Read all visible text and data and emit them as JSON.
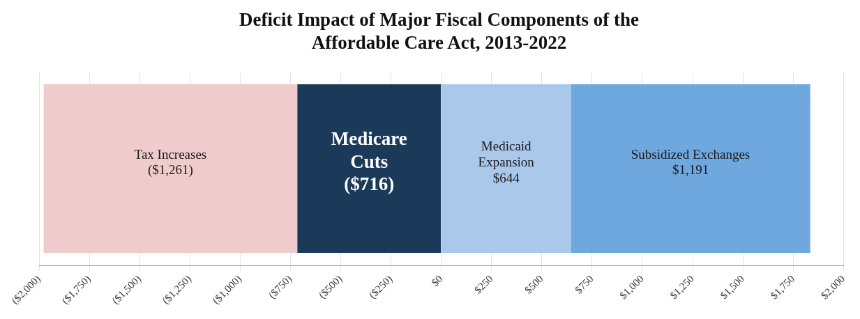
{
  "chart_data": {
    "type": "bar",
    "orientation": "horizontal",
    "title": "Deficit Impact of Major Fiscal Components of the Affordable Care Act, 2013-2022",
    "categories": [
      null
    ],
    "series": [
      {
        "name": "Tax Increases",
        "color": "#efcbcb",
        "values": [
          1261
        ],
        "base": [
          -1977
        ],
        "value_labels": [
          "($1,261)"
        ]
      },
      {
        "name": "Medicare Cuts",
        "color": "#1b3a5a",
        "values": [
          716
        ],
        "base": [
          -716
        ],
        "value_labels": [
          "($716)"
        ]
      },
      {
        "name": "Medicaid Expansion",
        "color": "#a9c8ea",
        "values": [
          644
        ],
        "base": [
          0
        ],
        "value_labels": [
          "$644"
        ]
      },
      {
        "name": "Subsidized Exchanges",
        "color": "#6ea8df",
        "values": [
          1191
        ],
        "base": [
          644
        ],
        "value_labels": [
          "$1,191"
        ]
      }
    ],
    "xlim": [
      -2000,
      2000
    ],
    "xticks": [
      {
        "value": -2000,
        "label": "($2,000)"
      },
      {
        "value": -1750,
        "label": "($1,750)"
      },
      {
        "value": -1500,
        "label": "($1,500)"
      },
      {
        "value": -1250,
        "label": "($1,250)"
      },
      {
        "value": -1000,
        "label": "($1,000)"
      },
      {
        "value": -750,
        "label": "($750)"
      },
      {
        "value": -500,
        "label": "($500)"
      },
      {
        "value": -250,
        "label": "($250)"
      },
      {
        "value": 0,
        "label": "$0"
      },
      {
        "value": 250,
        "label": "$250"
      },
      {
        "value": 500,
        "label": "$500"
      },
      {
        "value": 750,
        "label": "$750"
      },
      {
        "value": 1000,
        "label": "$1,000"
      },
      {
        "value": 1250,
        "label": "$1,250"
      },
      {
        "value": 1500,
        "label": "$1,500"
      },
      {
        "value": 1750,
        "label": "$1,750"
      },
      {
        "value": 2000,
        "label": "$2,000"
      }
    ],
    "grid": "x",
    "legend": false
  }
}
